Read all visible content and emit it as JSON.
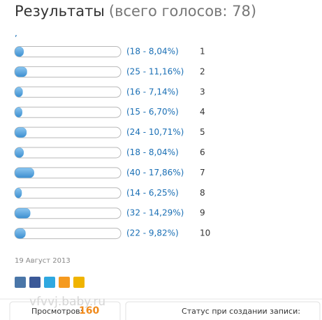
{
  "chart_data": {
    "type": "bar",
    "orientation": "horizontal",
    "title": "Результаты",
    "subtitle": "(всего голосов: 78)",
    "marker": ",",
    "categories": [
      "1",
      "2",
      "3",
      "4",
      "5",
      "6",
      "7",
      "8",
      "9",
      "10"
    ],
    "values": [
      8.04,
      11.16,
      7.14,
      6.7,
      10.71,
      8.04,
      17.86,
      6.25,
      14.29,
      9.82
    ],
    "value_labels": [
      "(18 - 8,04%)",
      "(25 - 11,16%)",
      "(16 - 7,14%)",
      "(15 - 6,70%)",
      "(24 - 10,71%)",
      "(18 - 8,04%)",
      "(40 - 17,86%)",
      "(14 - 6,25%)",
      "(32 - 14,29%)",
      "(22 - 9,82%)"
    ],
    "xlim": [
      0,
      100
    ],
    "color": "#4fa3e0"
  },
  "date": "19 Август 2013",
  "footer": {
    "views_label": "Просмотров:",
    "views": "160",
    "status_label": "Статус при создании записи:",
    "watermark": "vfvvj.baby.ru"
  }
}
